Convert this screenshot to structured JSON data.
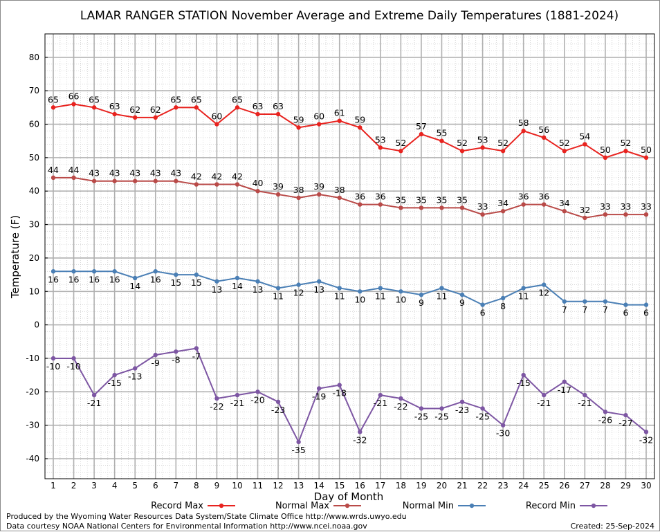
{
  "chart_data": {
    "type": "line",
    "title": "LAMAR RANGER STATION November Average and Extreme Daily Temperatures (1881-2024)",
    "xlabel": "Day of Month",
    "ylabel": "Temperature (F)",
    "ylim": [
      -46,
      87
    ],
    "y_ticks": [
      -40,
      -30,
      -20,
      -10,
      0,
      10,
      20,
      30,
      40,
      50,
      60,
      70,
      80
    ],
    "x": [
      1,
      2,
      3,
      4,
      5,
      6,
      7,
      8,
      9,
      10,
      11,
      12,
      13,
      14,
      15,
      16,
      17,
      18,
      19,
      20,
      21,
      22,
      23,
      24,
      25,
      26,
      27,
      28,
      29,
      30
    ],
    "grid": true,
    "legend_position": "bottom",
    "series": [
      {
        "name": "Record Max",
        "color": "#e8231f",
        "label_pos": "above",
        "values": [
          65,
          66,
          65,
          63,
          62,
          62,
          65,
          65,
          60,
          65,
          63,
          63,
          59,
          60,
          61,
          59,
          53,
          52,
          57,
          55,
          52,
          53,
          52,
          58,
          56,
          52,
          54,
          50,
          52,
          50
        ]
      },
      {
        "name": "Normal Max",
        "color": "#b94a48",
        "label_pos": "above",
        "values": [
          44,
          44,
          43,
          43,
          43,
          43,
          43,
          42,
          42,
          42,
          40,
          39,
          38,
          39,
          38,
          36,
          36,
          35,
          35,
          35,
          35,
          33,
          34,
          36,
          36,
          34,
          32,
          33,
          33,
          33
        ]
      },
      {
        "name": "Normal Min",
        "color": "#4a7fb5",
        "label_pos": "below",
        "values": [
          16,
          16,
          16,
          16,
          14,
          16,
          15,
          15,
          13,
          14,
          13,
          11,
          12,
          13,
          11,
          10,
          11,
          10,
          9,
          11,
          9,
          6,
          8,
          11,
          12,
          7,
          7,
          7,
          6,
          6
        ]
      },
      {
        "name": "Record Min",
        "color": "#7d56a3",
        "label_pos": "below",
        "values": [
          -10,
          -10,
          -21,
          -15,
          -13,
          -9,
          -8,
          -7,
          -22,
          -21,
          -20,
          -23,
          -35,
          -19,
          -18,
          -32,
          -21,
          -22,
          -25,
          -25,
          -23,
          -25,
          -30,
          -15,
          -21,
          -17,
          -21,
          -26,
          -27,
          -32
        ]
      }
    ]
  },
  "footer": {
    "line1": "Produced by the Wyoming Water Resources Data System/State Climate Office http://www.wrds.uwyo.edu",
    "line2": "Data courtesy NOAA National Centers for Environmental Information http://www.ncei.noaa.gov",
    "created": "Created:  25-Sep-2024"
  }
}
